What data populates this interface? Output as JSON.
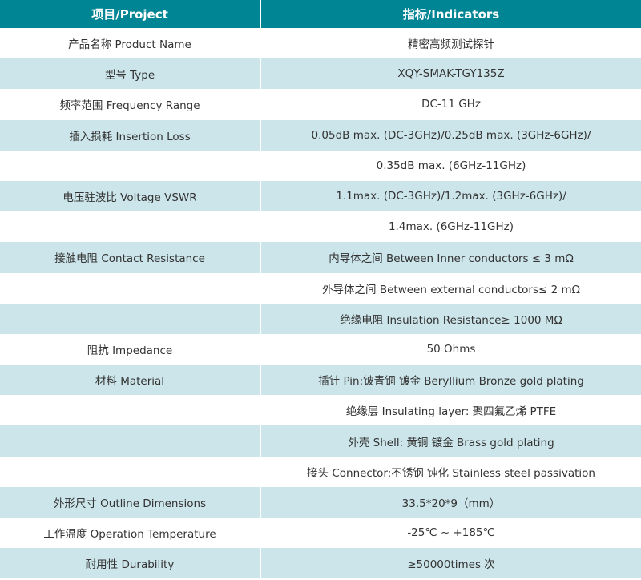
{
  "header": {
    "col1": "项目/Project",
    "col2": "指标/Indicators"
  },
  "colors": {
    "header": "#008595",
    "stripe": "#cce5ea"
  },
  "rows": [
    {
      "project": "产品名称 Product Name",
      "indicator": "精密高频测试探针"
    },
    {
      "project": "型号 Type",
      "indicator": "XQY-SMAK-TGY135Z"
    },
    {
      "project": "频率范围 Frequency Range",
      "indicator": "DC-11 GHz"
    },
    {
      "project": "插入损耗 Insertion Loss",
      "indicator": "0.05dB max. (DC-3GHz)/0.25dB max. (3GHz-6GHz)/"
    },
    {
      "project": "",
      "indicator": "0.35dB max. (6GHz-11GHz)"
    },
    {
      "project": "电压驻波比 Voltage VSWR",
      "indicator": "1.1max. (DC-3GHz)/1.2max. (3GHz-6GHz)/"
    },
    {
      "project": "",
      "indicator": "1.4max. (6GHz-11GHz)"
    },
    {
      "project": "接触电阻 Contact Resistance",
      "indicator": "内导体之间 Between Inner conductors ≤ 3 mΩ"
    },
    {
      "project": "",
      "indicator": "外导体之间 Between external conductors≤ 2 mΩ"
    },
    {
      "project": "",
      "indicator": "绝缘电阻 Insulation Resistance≥ 1000 MΩ"
    },
    {
      "project": "阻抗 Impedance",
      "indicator": "50 Ohms"
    },
    {
      "project": "材料 Material",
      "indicator": "插针 Pin:铍青铜 镀金 Beryllium Bronze gold plating"
    },
    {
      "project": "",
      "indicator": "绝缘层 Insulating layer: 聚四氟乙烯 PTFE"
    },
    {
      "project": "",
      "indicator": "外壳 Shell: 黄铜 镀金 Brass gold plating"
    },
    {
      "project": "",
      "indicator": "接头 Connector:不锈钢 钝化 Stainless steel passivation"
    },
    {
      "project": "外形尺寸 Outline Dimensions",
      "indicator": "33.5*20*9（mm）"
    },
    {
      "project": "工作温度 Operation Temperature",
      "indicator": "-25℃ ~ +185℃"
    },
    {
      "project": "耐用性 Durability",
      "indicator": "≥50000times 次"
    }
  ]
}
